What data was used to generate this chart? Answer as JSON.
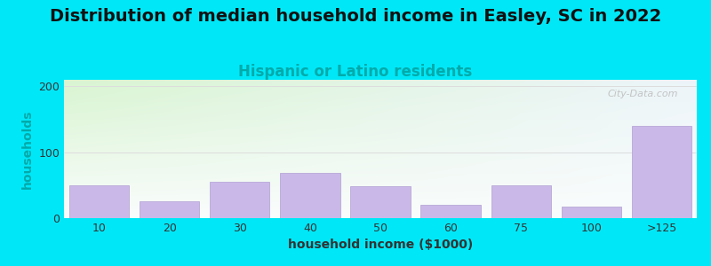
{
  "title": "Distribution of median household income in Easley, SC in 2022",
  "subtitle": "Hispanic or Latino residents",
  "xlabel": "household income ($1000)",
  "ylabel": "households",
  "categories": [
    "10",
    "20",
    "30",
    "40",
    "50",
    "60",
    "75",
    "100",
    ">125"
  ],
  "values": [
    50,
    25,
    55,
    68,
    48,
    20,
    50,
    18,
    140
  ],
  "bar_color": "#c9b8e8",
  "bar_edge_color": "#b8a8d8",
  "ylim": [
    0,
    210
  ],
  "yticks": [
    0,
    100,
    200
  ],
  "background_outer": "#00e8f8",
  "title_fontsize": 14,
  "subtitle_fontsize": 12,
  "subtitle_color": "#00aaaa",
  "axis_label_fontsize": 10,
  "tick_label_fontsize": 9,
  "watermark": "City-Data.com",
  "grid_color": "#dddddd",
  "ylabel_color": "#00aaaa",
  "xlabel_color": "#333333"
}
